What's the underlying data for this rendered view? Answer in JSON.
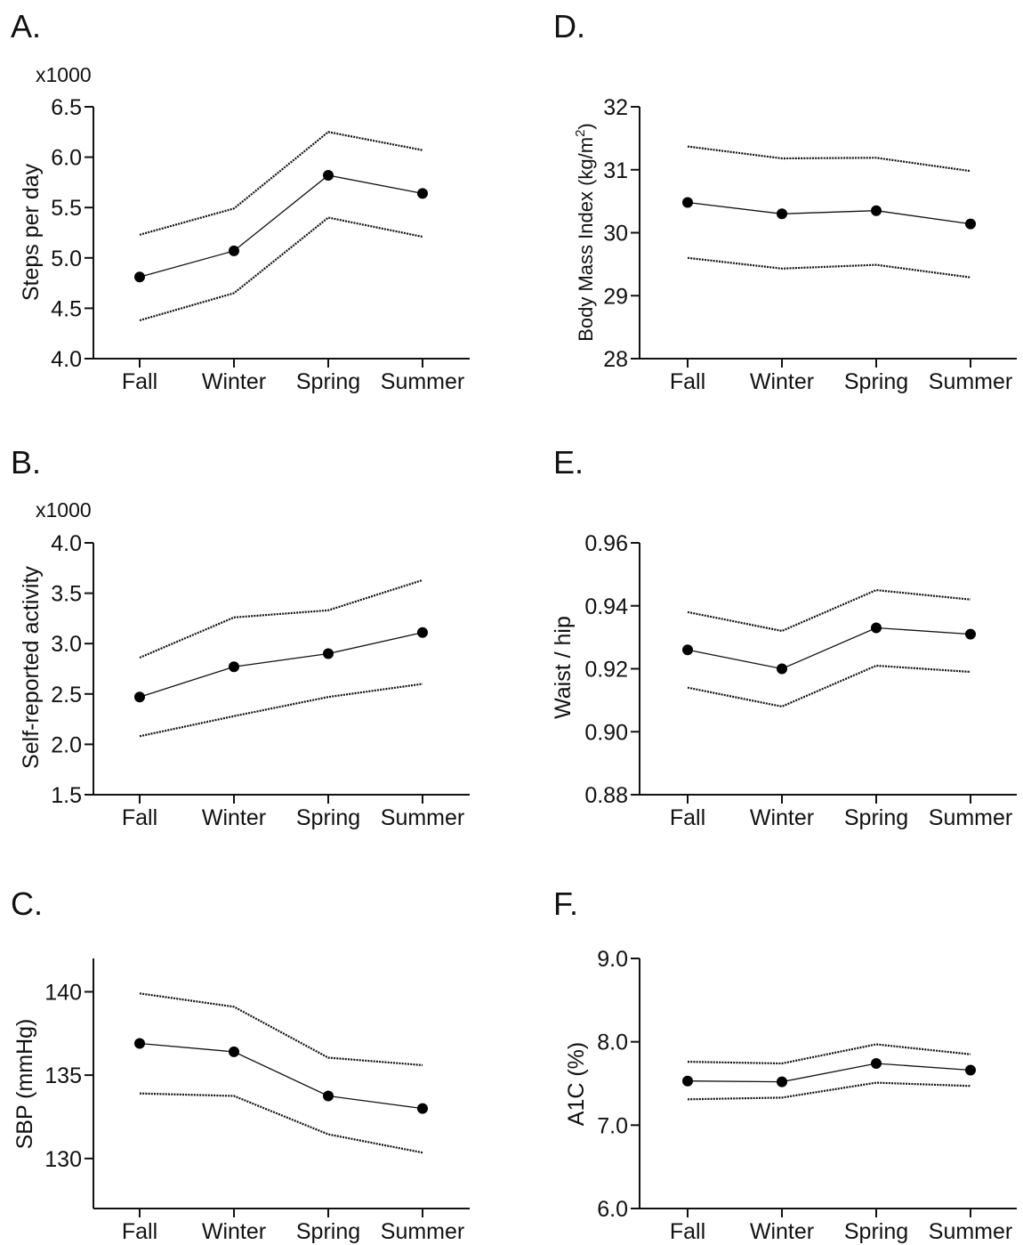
{
  "chart_data": [
    {
      "type": "line",
      "panel": "A.",
      "categories": [
        "Fall",
        "Winter",
        "Spring",
        "Summer"
      ],
      "ylabel": "Steps per day",
      "ymultiplier": "x1000",
      "ylim": [
        4.0,
        6.5
      ],
      "yticks": [
        "4.0",
        "4.5",
        "5.0",
        "5.5",
        "6.0",
        "6.5"
      ],
      "series": [
        {
          "role": "mean",
          "values": [
            4.81,
            5.07,
            5.82,
            5.64
          ]
        },
        {
          "role": "upper",
          "values": [
            5.23,
            5.49,
            6.25,
            6.07
          ]
        },
        {
          "role": "lower",
          "values": [
            4.38,
            4.65,
            5.4,
            5.21
          ]
        }
      ]
    },
    {
      "type": "line",
      "panel": "B.",
      "categories": [
        "Fall",
        "Winter",
        "Spring",
        "Summer"
      ],
      "ylabel": "Self-reported activity",
      "ymultiplier": "x1000",
      "ylim": [
        1.5,
        4.0
      ],
      "yticks": [
        "1.5",
        "2.0",
        "2.5",
        "3.0",
        "3.5",
        "4.0"
      ],
      "series": [
        {
          "role": "mean",
          "values": [
            2.47,
            2.77,
            2.9,
            3.11
          ]
        },
        {
          "role": "upper",
          "values": [
            2.86,
            3.26,
            3.33,
            3.63
          ]
        },
        {
          "role": "lower",
          "values": [
            2.08,
            2.28,
            2.47,
            2.6
          ]
        }
      ]
    },
    {
      "type": "line",
      "panel": "C.",
      "categories": [
        "Fall",
        "Winter",
        "Spring",
        "Summer"
      ],
      "ylabel": "SBP (mmHg)",
      "ymultiplier": "",
      "ylim": [
        127,
        142
      ],
      "yticks": [
        "130",
        "135",
        "140"
      ],
      "ytickvalues": [
        130,
        135,
        140
      ],
      "series": [
        {
          "role": "mean",
          "values": [
            136.9,
            136.4,
            133.75,
            133.0
          ]
        },
        {
          "role": "upper",
          "values": [
            139.9,
            139.1,
            136.05,
            135.6
          ]
        },
        {
          "role": "lower",
          "values": [
            133.9,
            133.75,
            131.45,
            130.35
          ]
        }
      ]
    },
    {
      "type": "line",
      "panel": "D.",
      "categories": [
        "Fall",
        "Winter",
        "Spring",
        "Summer"
      ],
      "ylabel": "Body Mass Index (kg/m",
      "ylabel_sup": "2",
      "ylabel_end": ")",
      "ymultiplier": "",
      "ylim": [
        28,
        32
      ],
      "yticks": [
        "28",
        "29",
        "30",
        "31",
        "32"
      ],
      "series": [
        {
          "role": "mean",
          "values": [
            30.48,
            30.3,
            30.35,
            30.14
          ]
        },
        {
          "role": "upper",
          "values": [
            31.37,
            31.18,
            31.19,
            30.98
          ]
        },
        {
          "role": "lower",
          "values": [
            29.6,
            29.43,
            29.49,
            29.29
          ]
        }
      ]
    },
    {
      "type": "line",
      "panel": "E.",
      "categories": [
        "Fall",
        "Winter",
        "Spring",
        "Summer"
      ],
      "ylabel": "Waist / hip",
      "ymultiplier": "",
      "ylim": [
        0.88,
        0.96
      ],
      "yticks": [
        "0.88",
        "0.90",
        "0.92",
        "0.94",
        "0.96"
      ],
      "series": [
        {
          "role": "mean",
          "values": [
            0.926,
            0.92,
            0.933,
            0.931
          ]
        },
        {
          "role": "upper",
          "values": [
            0.938,
            0.932,
            0.945,
            0.942
          ]
        },
        {
          "role": "lower",
          "values": [
            0.914,
            0.908,
            0.921,
            0.919
          ]
        }
      ]
    },
    {
      "type": "line",
      "panel": "F.",
      "categories": [
        "Fall",
        "Winter",
        "Spring",
        "Summer"
      ],
      "ylabel": "A1C (%)",
      "ymultiplier": "",
      "ylim": [
        6.0,
        9.0
      ],
      "yticks": [
        "6.0",
        "7.0",
        "8.0",
        "9.0"
      ],
      "series": [
        {
          "role": "mean",
          "values": [
            7.53,
            7.52,
            7.74,
            7.66
          ]
        },
        {
          "role": "upper",
          "values": [
            7.76,
            7.74,
            7.97,
            7.85
          ]
        },
        {
          "role": "lower",
          "values": [
            7.31,
            7.33,
            7.51,
            7.47
          ]
        }
      ]
    }
  ]
}
